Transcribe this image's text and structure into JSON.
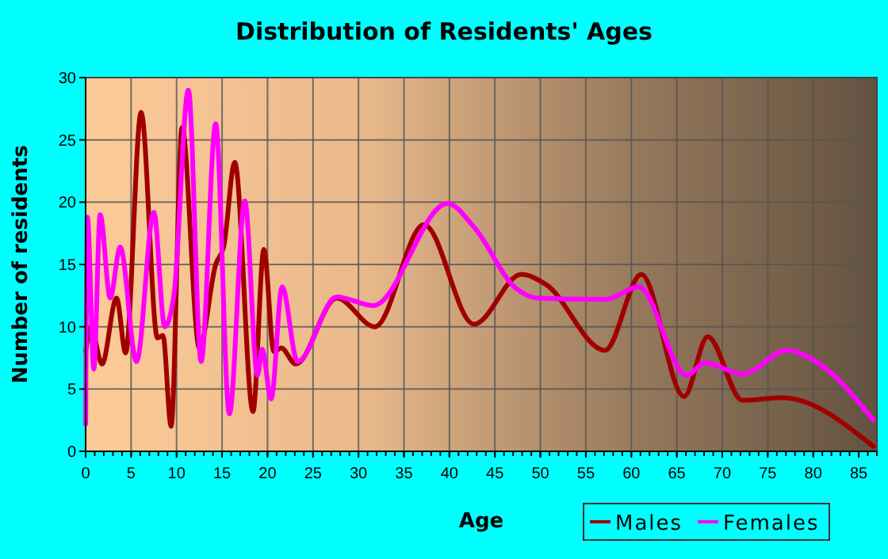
{
  "chart_data": {
    "type": "line",
    "title": "Distribution of Residents' Ages",
    "xlabel": "Age",
    "ylabel": "Number of residents",
    "xlim": [
      0,
      87
    ],
    "xticks": [
      0,
      5,
      10,
      15,
      20,
      25,
      30,
      35,
      40,
      45,
      50,
      55,
      60,
      65,
      70,
      75,
      80,
      85
    ],
    "ylim": [
      0,
      30
    ],
    "yticks": [
      0,
      5,
      10,
      15,
      20,
      25,
      30
    ],
    "grid": true,
    "legend": "bottom right",
    "marker": "none",
    "line_style": "solid",
    "series": [
      {
        "name": "Males",
        "color": "#a00000",
        "x": [
          0,
          0.6,
          1.8,
          3.4,
          4.4,
          6.1,
          7.9,
          8.5,
          9.4,
          10.6,
          12.5,
          14.3,
          15.2,
          16.4,
          18.4,
          19.6,
          20.7,
          21.5,
          23.1,
          27.6,
          31.8,
          37.2,
          42.7,
          47.9,
          50.6,
          57.1,
          61.1,
          65.8,
          68.4,
          72.2,
          76.6,
          86.6
        ],
        "values": [
          8,
          10,
          7,
          12.3,
          7.9,
          27.2,
          9.1,
          9.3,
          2,
          26,
          8.3,
          15,
          16.5,
          23.2,
          3.2,
          16.2,
          8,
          8.3,
          7,
          12.3,
          10,
          18.2,
          10.2,
          14.2,
          13.4,
          8.1,
          14.2,
          4.4,
          9.2,
          4.1,
          4.3,
          0.4
        ]
      },
      {
        "name": "Females",
        "color": "#ff00ff",
        "x": [
          0,
          0.2,
          0.9,
          1.6,
          2.7,
          3.8,
          5.6,
          7.5,
          8.7,
          9.7,
          11.3,
          12.7,
          14.3,
          15.8,
          17.5,
          18.9,
          19.4,
          20.4,
          21.6,
          23.3,
          27.6,
          31.6,
          39.8,
          42.7,
          47.3,
          49.7,
          57.2,
          60.8,
          66.1,
          68.1,
          72.2,
          77.1,
          80.9,
          86.6
        ],
        "values": [
          2.2,
          18.8,
          6.6,
          19,
          12.3,
          16.4,
          7.2,
          19.2,
          10,
          12.5,
          29,
          7.2,
          26.3,
          3,
          20.1,
          6.1,
          8.2,
          4.2,
          13.2,
          7.2,
          12.4,
          11.7,
          19.9,
          18,
          13.1,
          12.3,
          12.2,
          13.2,
          6.1,
          7.1,
          6.2,
          8.1,
          6.9,
          2.5
        ]
      }
    ]
  }
}
